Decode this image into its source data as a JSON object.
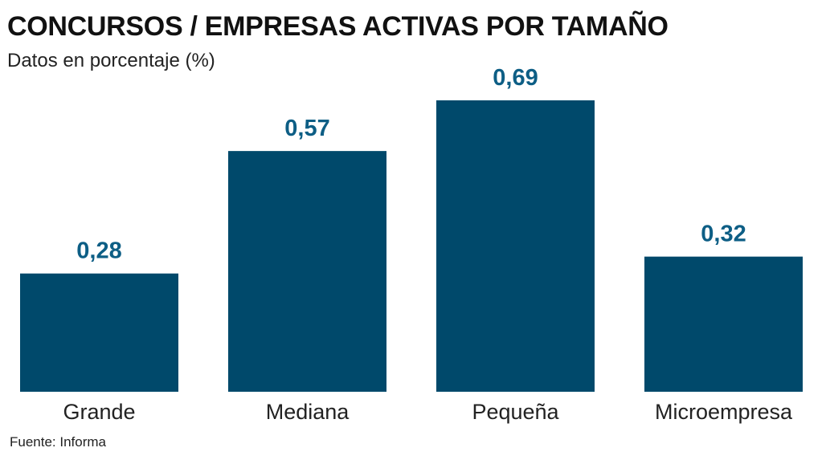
{
  "chart_data": {
    "type": "bar",
    "title": "CONCURSOS / EMPRESAS ACTIVAS POR TAMAÑO",
    "subtitle": "Datos en porcentaje (%)",
    "categories": [
      "Grande",
      "Mediana",
      "Pequeña",
      "Microempresa"
    ],
    "values": [
      0.28,
      0.57,
      0.69,
      0.32
    ],
    "value_labels": [
      "0,28",
      "0,57",
      "0,69",
      "0,32"
    ],
    "ylim": [
      0,
      0.69
    ],
    "xlabel": "",
    "ylabel": "",
    "grid": false,
    "legend": "none",
    "bar_color": "#00496b",
    "label_color": "#0d5e85"
  },
  "source": "Fuente: Informa"
}
